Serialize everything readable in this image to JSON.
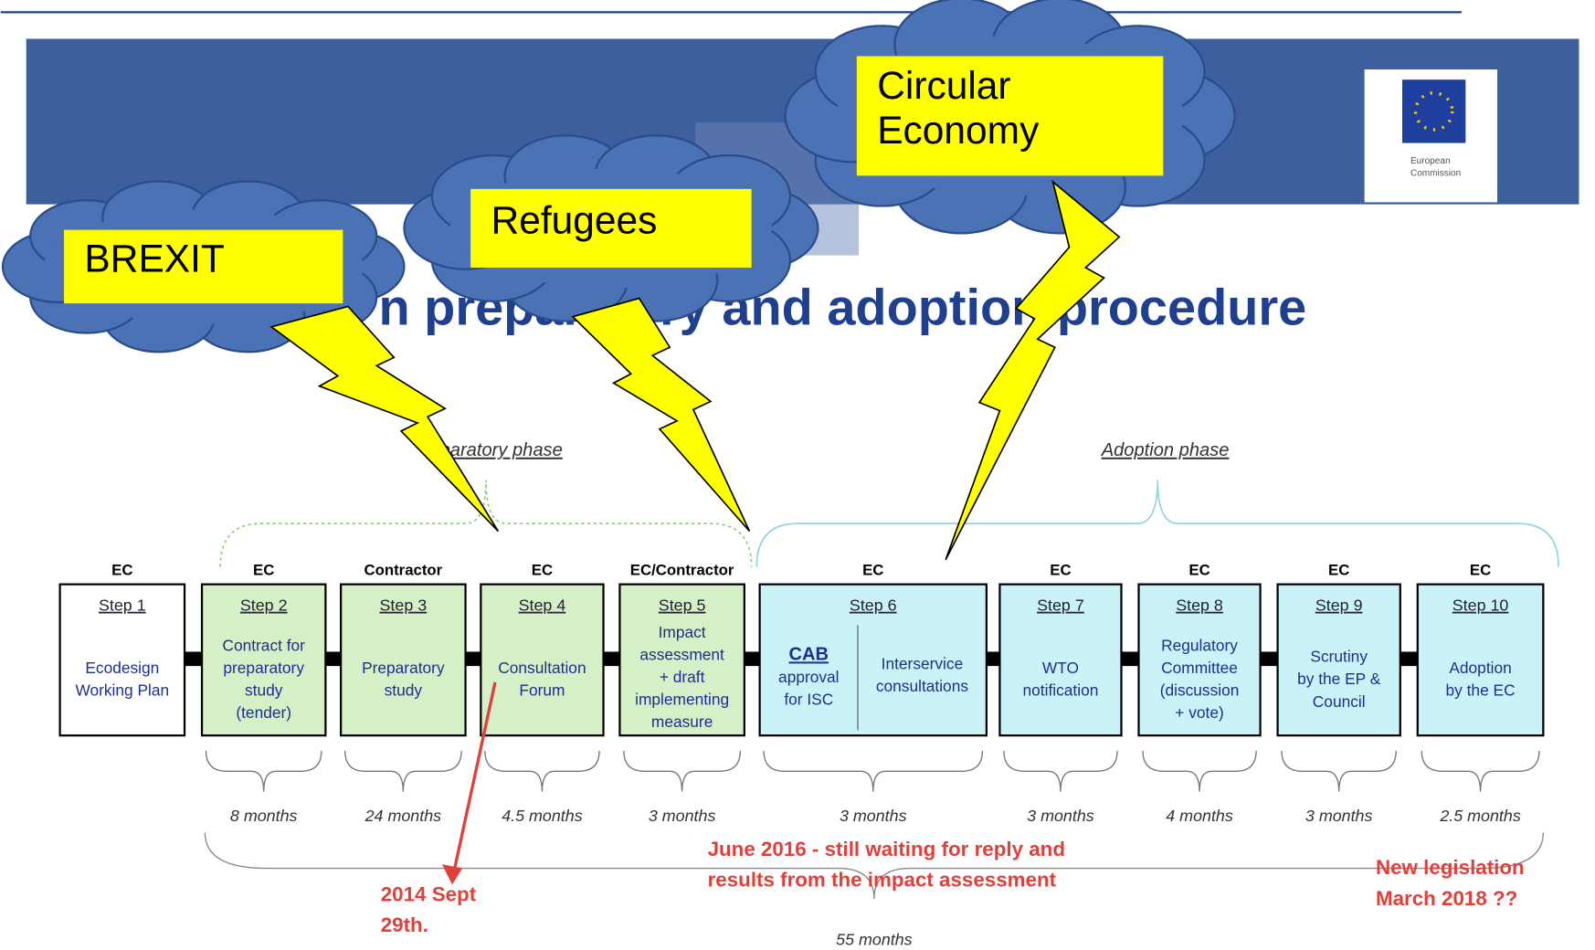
{
  "header": {
    "title": "n preparatory and adoption procedure",
    "logo_text": [
      "European",
      "Commission"
    ]
  },
  "phases": [
    {
      "label": "paratory phase"
    },
    {
      "label": "Adoption phase"
    }
  ],
  "steps": [
    {
      "actor": "EC",
      "step": "Step 1",
      "description": [
        "Ecodesign",
        "Working Plan"
      ],
      "color": "#ffffff"
    },
    {
      "actor": "EC",
      "step": "Step 2",
      "description": [
        "Contract for",
        "preparatory",
        "study",
        "(tender)"
      ],
      "duration": "8 months",
      "color": "#d5f0c6"
    },
    {
      "actor": "Contractor",
      "step": "Step 3",
      "description": [
        "Preparatory",
        "study"
      ],
      "duration": "24 months",
      "color": "#d5f0c6"
    },
    {
      "actor": "EC",
      "step": "Step 4",
      "description": [
        "Consultation",
        "Forum"
      ],
      "duration": "4.5 months",
      "color": "#d5f0c6"
    },
    {
      "actor": "EC/Contractor",
      "step": "Step 5",
      "description": [
        "Impact",
        "assessment",
        "+ draft",
        "implementing",
        "measure"
      ],
      "duration": "3 months",
      "color": "#d5f0c6"
    },
    {
      "actor": "EC",
      "step": "Step 6",
      "description_left": [
        "CAB",
        "approval",
        "for ISC"
      ],
      "description_right": [
        "Interservice",
        "consultations"
      ],
      "duration": "3 months",
      "color": "#c9f3f7"
    },
    {
      "actor": "EC",
      "step": "Step 7",
      "description": [
        "WTO",
        "notification"
      ],
      "duration": "3 months",
      "color": "#c9f3f7"
    },
    {
      "actor": "EC",
      "step": "Step 8",
      "description": [
        "Regulatory",
        "Committee",
        "(discussion",
        "+ vote)"
      ],
      "duration": "4 months",
      "color": "#c9f3f7"
    },
    {
      "actor": "EC",
      "step": "Step 9",
      "description": [
        "Scrutiny",
        "by the EP &",
        "Council"
      ],
      "duration": "3 months",
      "color": "#c9f3f7"
    },
    {
      "actor": "EC",
      "step": "Step 10",
      "description": [
        "Adoption",
        "by the EC"
      ],
      "duration": "2.5 months",
      "color": "#c9f3f7"
    }
  ],
  "total": "55 months",
  "clouds": [
    {
      "label": [
        "BREXIT"
      ]
    },
    {
      "label": [
        "Refugees"
      ]
    },
    {
      "label": [
        "Circular",
        "Economy"
      ]
    }
  ],
  "notes": [
    {
      "label": [
        "2014 Sept",
        "29th."
      ]
    },
    {
      "label": [
        "June 2016 - still waiting for reply and",
        "results from the impact assessment"
      ]
    },
    {
      "label": [
        "New legislation",
        "March 2018 ??"
      ]
    }
  ]
}
